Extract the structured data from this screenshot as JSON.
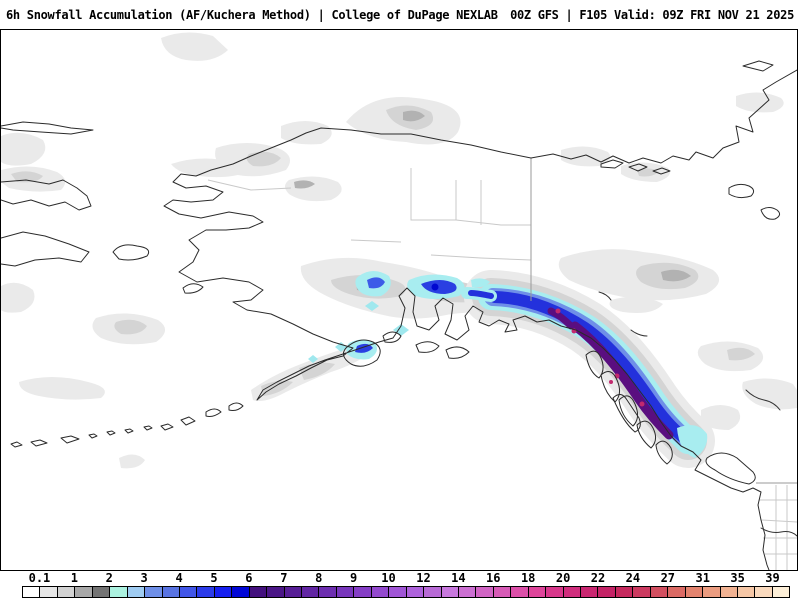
{
  "header": {
    "title_left": "6h Snowfall Accumulation (AF/Kuchera Method) | College of DuPage NEXLAB",
    "title_right": "00Z GFS | F105 Valid: 09Z FRI NOV 21 2025",
    "product": "6h Snowfall Accumulation (AF/Kuchera Method)",
    "source": "College of DuPage NEXLAB",
    "model_run": "00Z GFS",
    "forecast_hour": "F105",
    "valid_time": "09Z FRI NOV 21 2025"
  },
  "chart_data": {
    "type": "heatmap",
    "title": "6h Snowfall Accumulation (AF/Kuchera Method)",
    "legend_position": "bottom",
    "colorbar": {
      "tick_labels": [
        "0.1",
        "1",
        "2",
        "3",
        "4",
        "5",
        "6",
        "7",
        "8",
        "9",
        "10",
        "12",
        "14",
        "16",
        "18",
        "20",
        "22",
        "24",
        "27",
        "31",
        "35",
        "39"
      ],
      "segment_colors": [
        "#FFFFFF",
        "#E6E6E6",
        "#D2D2D2",
        "#A8A8A8",
        "#737373",
        "#ACF2E0",
        "#9FCCF2",
        "#6E8FE8",
        "#5873E2",
        "#4156E8",
        "#2B3BEA",
        "#161FF0",
        "#0006D6",
        "#43107E",
        "#4B1687",
        "#571E96",
        "#6226A4",
        "#6D2EB0",
        "#7836BC",
        "#853EC6",
        "#9349CE",
        "#A055D6",
        "#AE62DC",
        "#B86AD6",
        "#C878DE",
        "#CC6FD2",
        "#D164C4",
        "#D75AB6",
        "#DC4FA8",
        "#DE449A",
        "#D8378B",
        "#D02D7D",
        "#C92670",
        "#C42366",
        "#C6295E",
        "#CC3A60",
        "#D24F60",
        "#DB6A64",
        "#E3836E",
        "#EB9C80",
        "#F1B292",
        "#F6C7A6",
        "#FADABE",
        "#FDEFD8"
      ]
    },
    "map_colors": {
      "trace_gray_light": "#EAEAEA",
      "trace_gray_mid": "#D4D4D4",
      "trace_gray_dark": "#B2B2B2",
      "swath_cyan": "#A8EDF0",
      "swath_light_blue": "#6F8FE8",
      "swath_blue": "#2331DC",
      "swath_purple_core": "#5A0E80",
      "swath_magenta_spot": "#C22A6E",
      "coastline": "#2b2b2b",
      "borough_line": "#c9c9c9"
    },
    "annotations": [
      "Heaviest snowfall band (purple core, 6-10 in) along Gulf of Alaska coast and southeast Alaska panhandle",
      "Blue cells (3-6 in) near Prince William Sound, Susitna Valley and Kodiak Island",
      "Scattered trace amounts (gray, 0.1-2 in) across interior Alaska, Yukon and Bering Sea region"
    ]
  }
}
